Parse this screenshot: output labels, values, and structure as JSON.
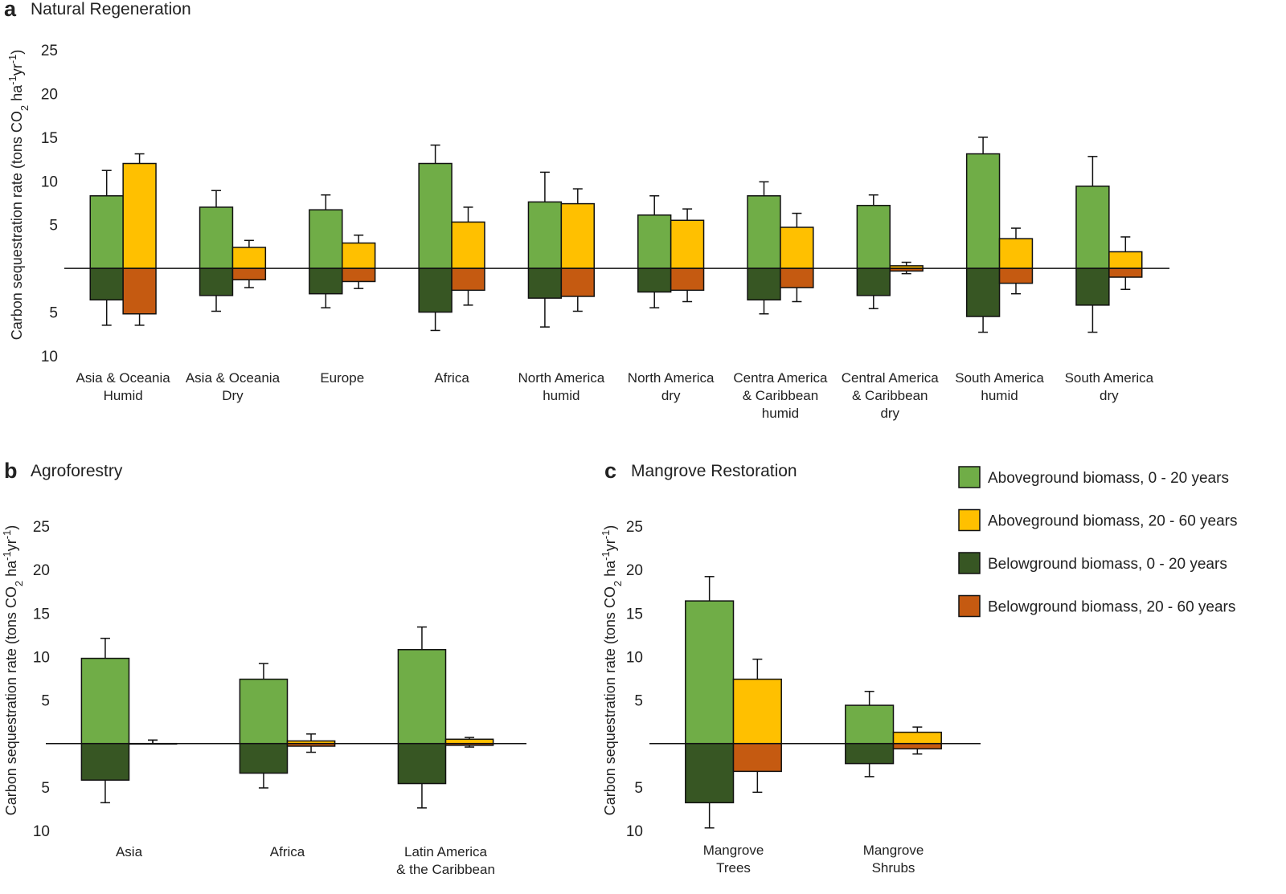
{
  "chart_data": [
    {
      "type": "bar",
      "panel": "a",
      "title": "Natural Regeneration",
      "y_label": [
        "Carbon sequestration rate (tons CO",
        "2",
        " ha",
        "-1",
        "yr",
        "-1",
        ")"
      ],
      "categories": [
        [
          "Asia & Oceania",
          "Humid"
        ],
        [
          "Asia & Oceania",
          "Dry"
        ],
        [
          "Europe"
        ],
        [
          "Africa"
        ],
        [
          "North America",
          "humid"
        ],
        [
          "North America",
          "dry"
        ],
        [
          "Centra America",
          "& Caribbean",
          "humid"
        ],
        [
          "Central America",
          "& Caribbean",
          "dry"
        ],
        [
          "South America",
          "humid"
        ],
        [
          "South America",
          "dry"
        ]
      ],
      "ylim": [
        -10,
        25
      ],
      "yticks": [
        {
          "value": -10,
          "label": "10"
        },
        {
          "value": -5,
          "label": "5"
        },
        5,
        10,
        15,
        20,
        25
      ],
      "series": [
        {
          "color": "#70ad47",
          "values": [
            8.3,
            7.0,
            6.7,
            12.0,
            7.6,
            6.1,
            8.3,
            7.2,
            13.1,
            9.4
          ],
          "errors": [
            2.9,
            1.9,
            1.7,
            2.1,
            3.4,
            2.2,
            1.6,
            1.2,
            1.9,
            3.4
          ]
        },
        {
          "color": "#ffc000",
          "values": [
            12.0,
            2.4,
            2.9,
            5.3,
            7.4,
            5.5,
            4.7,
            0.3,
            3.4,
            1.9
          ],
          "errors": [
            1.1,
            0.8,
            0.9,
            1.7,
            1.7,
            1.3,
            1.6,
            0.4,
            1.2,
            1.7
          ]
        },
        {
          "color": "#375623",
          "values": [
            -3.6,
            -3.1,
            -2.9,
            -5.0,
            -3.4,
            -2.7,
            -3.6,
            -3.1,
            -5.5,
            -4.2
          ],
          "errors": [
            2.9,
            1.8,
            1.6,
            2.1,
            3.3,
            1.8,
            1.6,
            1.5,
            1.8,
            3.1
          ]
        },
        {
          "color": "#c55a11",
          "values": [
            -5.2,
            -1.3,
            -1.5,
            -2.5,
            -3.2,
            -2.5,
            -2.2,
            -0.3,
            -1.7,
            -1.0
          ],
          "errors": [
            1.3,
            0.9,
            0.8,
            1.7,
            1.7,
            1.3,
            1.6,
            0.3,
            1.2,
            1.4
          ]
        }
      ]
    },
    {
      "type": "bar",
      "panel": "b",
      "title": "Agroforestry",
      "y_label": [
        "Carbon sequestration rate (tons CO",
        "2",
        " ha",
        "-1",
        "yr",
        "-1",
        ")"
      ],
      "categories": [
        [
          "Asia"
        ],
        [
          "Africa"
        ],
        [
          "Latin America",
          "& the Caribbean"
        ]
      ],
      "ylim": [
        -10,
        25
      ],
      "yticks": [
        {
          "value": -10,
          "label": "10"
        },
        {
          "value": -5,
          "label": "5"
        },
        5,
        10,
        15,
        20,
        25
      ],
      "series": [
        {
          "color": "#70ad47",
          "values": [
            9.8,
            7.4,
            10.8
          ],
          "errors": [
            2.3,
            1.8,
            2.6
          ]
        },
        {
          "color": "#ffc000",
          "values": [
            0,
            0.3,
            0.5
          ],
          "errors": [
            0.4,
            0.8,
            0.2
          ]
        },
        {
          "color": "#375623",
          "values": [
            -4.2,
            -3.4,
            -4.6
          ],
          "errors": [
            2.6,
            1.7,
            2.8
          ]
        },
        {
          "color": "#c55a11",
          "values": [
            0,
            -0.3,
            -0.2
          ],
          "errors": [
            0.4,
            0.7,
            0.2
          ]
        }
      ]
    },
    {
      "type": "bar",
      "panel": "c",
      "title": "Mangrove Restoration",
      "y_label": [
        "Carbon sequestration rate (tons CO",
        "2",
        " ha",
        "-1",
        "yr",
        "-1",
        ")"
      ],
      "categories": [
        [
          "Mangrove",
          "Trees"
        ],
        [
          "Mangrove",
          "Shrubs"
        ]
      ],
      "ylim": [
        -10,
        25
      ],
      "yticks": [
        {
          "value": -10,
          "label": "10"
        },
        {
          "value": -5,
          "label": "5"
        },
        5,
        10,
        15,
        20,
        25
      ],
      "legend": "right",
      "series": [
        {
          "name": "Aboveground biomass, 0 - 20 years",
          "color": "#70ad47",
          "values": [
            16.4,
            4.4
          ],
          "errors": [
            2.8,
            1.6
          ]
        },
        {
          "name": "Aboveground biomass, 20 - 60 years",
          "color": "#ffc000",
          "values": [
            7.4,
            1.3
          ],
          "errors": [
            2.3,
            0.6
          ]
        },
        {
          "name": "Belowground biomass, 0 - 20 years",
          "color": "#375623",
          "values": [
            -6.8,
            -2.3
          ],
          "errors": [
            2.9,
            1.5
          ]
        },
        {
          "name": "Belowground biomass, 20 - 60 years",
          "color": "#c55a11",
          "values": [
            -3.2,
            -0.6
          ],
          "errors": [
            2.4,
            0.6
          ]
        }
      ]
    }
  ]
}
